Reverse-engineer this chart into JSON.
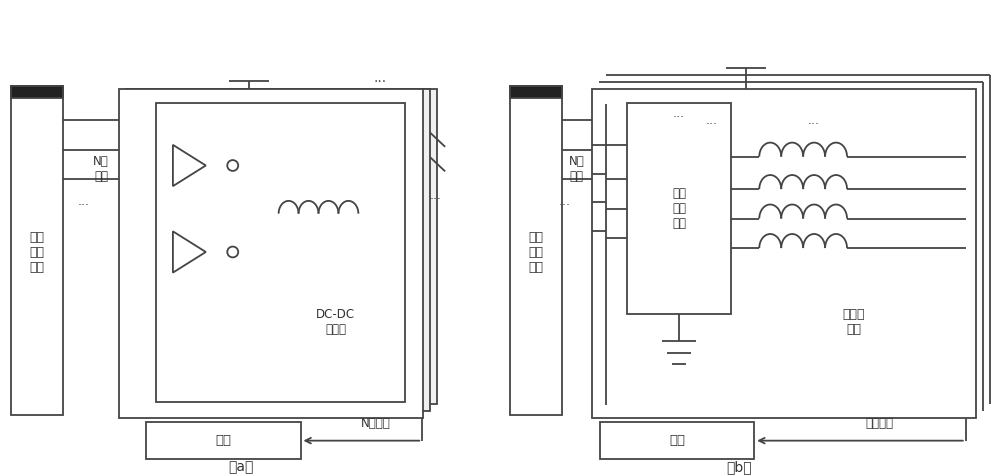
{
  "bg_color": "#ffffff",
  "line_color": "#444444",
  "text_color": "#333333",
  "fig_width": 10.0,
  "fig_height": 4.76,
  "label_a": "（a）",
  "label_b": "（b）",
  "title_a_box": "数字\n控制\n模块",
  "n_control_a": "N路\n控制",
  "dcdc_label": "DC-DC\n变换器",
  "load_a": "负载",
  "output_a": "N路输出",
  "title_b_box": "数字\n控制\n模块",
  "n_control_b": "N阶\n控制",
  "level_module": "电平\n转换\n模块",
  "multi_output": "多电平\n输出",
  "load_b": "负载",
  "output_b": "单路输出"
}
